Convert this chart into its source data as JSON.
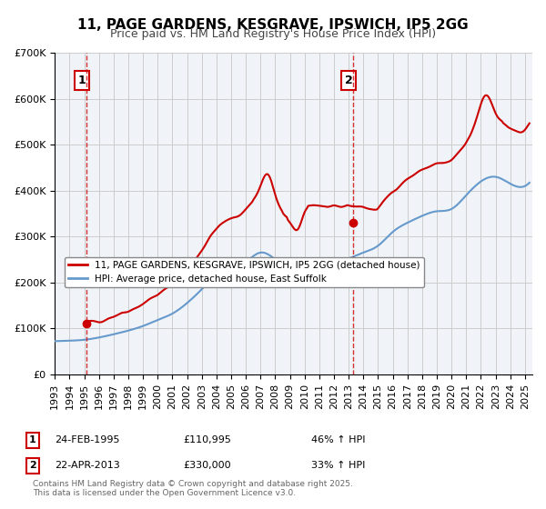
{
  "title": "11, PAGE GARDENS, KESGRAVE, IPSWICH, IP5 2GG",
  "subtitle": "Price paid vs. HM Land Registry's House Price Index (HPI)",
  "legend_line1": "11, PAGE GARDENS, KESGRAVE, IPSWICH, IP5 2GG (detached house)",
  "legend_line2": "HPI: Average price, detached house, East Suffolk",
  "marker1_date_label": "24-FEB-1995",
  "marker1_price": 110995,
  "marker1_hpi": "46% ↑ HPI",
  "marker2_date_label": "22-APR-2013",
  "marker2_price": 330000,
  "marker2_hpi": "33% ↑ HPI",
  "marker1_x": 1995.13,
  "marker2_x": 2013.31,
  "footer": "Contains HM Land Registry data © Crown copyright and database right 2025.\nThis data is licensed under the Open Government Licence v3.0.",
  "red_color": "#cc0000",
  "blue_color": "#6699cc",
  "vline_color": "#cc0000",
  "background_color": "#ffffff",
  "grid_color": "#cccccc",
  "ylim": [
    0,
    700000
  ],
  "xlim": [
    1993,
    2025.5
  ]
}
